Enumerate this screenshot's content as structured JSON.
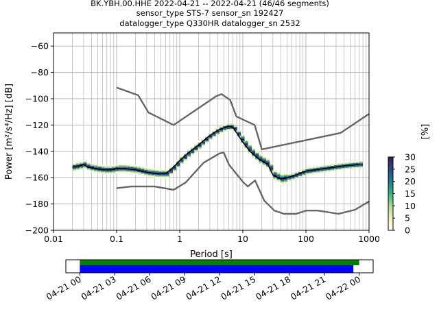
{
  "figure": {
    "title_lines": [
      "BK.YBH.00.HHE   2022-04-21 -- 2022-04-21  (46/46 segments)",
      "sensor_type STS-7 sensor_sn 192427",
      "datalogger_type Q330HR datalogger_sn 2532"
    ]
  },
  "chart_data": [
    {
      "type": "heatmap",
      "title": "",
      "xlabel": "Period [s]",
      "ylabel": "Power [m²/s⁴/Hz] [dB]",
      "x_scale": "log",
      "xlim": [
        0.01,
        1000
      ],
      "ylim": [
        -200,
        -50
      ],
      "x_ticks": [
        0.01,
        0.1,
        1,
        10,
        100,
        1000
      ],
      "x_tick_labels": [
        "0.01",
        "0.1",
        "1",
        "10",
        "100",
        "1000"
      ],
      "y_ticks": [
        -200,
        -180,
        -160,
        -140,
        -120,
        -100,
        -80,
        -60
      ],
      "y_tick_labels": [
        "−200",
        "−180",
        "−160",
        "−140",
        "−120",
        "−100",
        "−80",
        "−60"
      ],
      "grid": true,
      "colorbar": {
        "label": "[%]",
        "range": [
          0,
          30
        ],
        "ticks": [
          0,
          5,
          10,
          15,
          20,
          25,
          30
        ],
        "colors": [
          "#ffffff",
          "#f5efb8",
          "#a6db97",
          "#3fb182",
          "#247f8c",
          "#2c4b83",
          "#3b1e5c"
        ]
      },
      "series": [
        {
          "name": "mode",
          "color": "#000000",
          "x": [
            0.02,
            0.025,
            0.03,
            0.035,
            0.045,
            0.06,
            0.08,
            0.1,
            0.13,
            0.2,
            0.3,
            0.45,
            0.6,
            0.8,
            1.0,
            1.3,
            2.0,
            3.0,
            4.0,
            5.0,
            6.0,
            7.0,
            8.0,
            10.0,
            13.0,
            18.0,
            25.0,
            30.0,
            40.0,
            60.0,
            100.0,
            200.0,
            400.0,
            700.0
          ],
          "y": [
            -152,
            -151,
            -150,
            -152,
            -153,
            -154,
            -154,
            -153,
            -153,
            -154,
            -156,
            -157,
            -157,
            -152,
            -147,
            -142,
            -135,
            -128,
            -124,
            -122,
            -121,
            -122,
            -126,
            -133,
            -140,
            -146,
            -150,
            -158,
            -161,
            -159,
            -155,
            -153,
            -151,
            -150
          ]
        },
        {
          "name": "",
          "color": "#666666",
          "x": [
            0.1,
            0.22,
            0.32,
            0.8,
            3.8,
            4.6,
            6.3,
            7.9,
            15.4,
            20.0,
            354.8,
            1000
          ],
          "y": [
            -91.5,
            -97.4,
            -110.5,
            -120,
            -98.0,
            -96.5,
            -101.0,
            -113.5,
            -120.0,
            -138.5,
            -126.0,
            -111.5
          ]
        },
        {
          "name": "",
          "color": "#666666",
          "x": [
            0.1,
            0.17,
            0.4,
            0.8,
            1.24,
            2.4,
            4.3,
            5.0,
            6.0,
            10.0,
            12.0,
            15.6,
            21.9,
            31.6,
            45.0,
            70.0,
            101,
            154,
            328,
            600,
            1000
          ],
          "y": [
            -168.0,
            -166.7,
            -166.7,
            -169.2,
            -163.7,
            -148.6,
            -141.5,
            -141.0,
            -150.0,
            -163.2,
            -166.7,
            -162.1,
            -177.5,
            -185.0,
            -187.5,
            -187.5,
            -185.0,
            -185.0,
            -187.5,
            -184.4,
            -178.0
          ]
        }
      ]
    },
    {
      "type": "bar",
      "title": "",
      "x_tick_labels": [
        "04-21 00",
        "04-21 03",
        "04-21 06",
        "04-21 09",
        "04-21 12",
        "04-21 15",
        "04-21 18",
        "04-21 21",
        "04-22 00"
      ],
      "x_range_hours": [
        -1.2,
        25.2
      ],
      "series": [
        {
          "name": "",
          "color": "#008000",
          "start_hour": 0.0,
          "end_hour": 24.0
        },
        {
          "name": "",
          "color": "#0000ff",
          "start_hour": 0.0,
          "end_hour": 23.5
        }
      ]
    }
  ]
}
